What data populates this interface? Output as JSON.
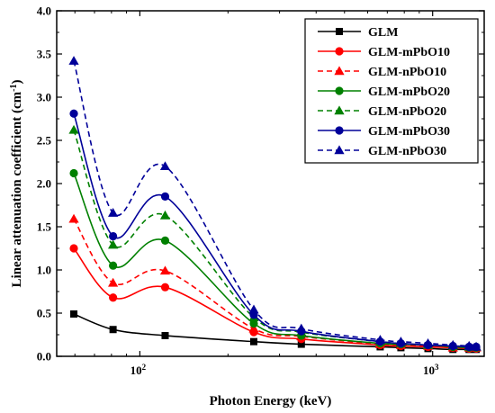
{
  "chart_data": {
    "type": "line",
    "xlabel": "Photon Energy (keV)",
    "ylabel": "Linear attenuation coefficient (cm",
    "ylabel_sup": "-1",
    "ylabel_close": ")",
    "xscale": "log",
    "xlim": [
      52,
      1500
    ],
    "ylim": [
      0,
      4.0
    ],
    "yticks": [
      {
        "value": 0.0,
        "label": "0.0"
      },
      {
        "value": 0.5,
        "label": "0.5"
      },
      {
        "value": 1.0,
        "label": "1.0"
      },
      {
        "value": 1.5,
        "label": "1.5"
      },
      {
        "value": 2.0,
        "label": "2.0"
      },
      {
        "value": 2.5,
        "label": "2.5"
      },
      {
        "value": 3.0,
        "label": "3.0"
      },
      {
        "value": 3.5,
        "label": "3.5"
      },
      {
        "value": 4.0,
        "label": "4.0"
      }
    ],
    "xticks": [
      {
        "value": 100,
        "base": "10",
        "exp": "2"
      },
      {
        "value": 1000,
        "base": "10",
        "exp": "3"
      }
    ],
    "x": [
      59.5,
      81,
      122,
      245,
      356,
      662,
      779,
      964,
      1173,
      1332,
      1408
    ],
    "legend_position": "top-right",
    "grid": false,
    "series": [
      {
        "name": "GLM",
        "color": "#000000",
        "dash": false,
        "marker": "square",
        "values": [
          0.49,
          0.31,
          0.24,
          0.17,
          0.14,
          0.11,
          0.1,
          0.09,
          0.08,
          0.08,
          0.08
        ]
      },
      {
        "name": "GLM-mPbO10",
        "color": "#ff0000",
        "dash": false,
        "marker": "circle",
        "values": [
          1.25,
          0.68,
          0.8,
          0.28,
          0.2,
          0.13,
          0.12,
          0.11,
          0.1,
          0.09,
          0.09
        ]
      },
      {
        "name": "GLM-nPbO10",
        "color": "#ff0000",
        "dash": true,
        "marker": "triangle",
        "values": [
          1.59,
          0.85,
          0.99,
          0.32,
          0.23,
          0.14,
          0.13,
          0.12,
          0.1,
          0.1,
          0.1
        ]
      },
      {
        "name": "GLM-mPbO20",
        "color": "#008000",
        "dash": false,
        "marker": "circle",
        "values": [
          2.12,
          1.05,
          1.34,
          0.38,
          0.24,
          0.15,
          0.14,
          0.13,
          0.11,
          0.1,
          0.1
        ]
      },
      {
        "name": "GLM-nPbO20",
        "color": "#008000",
        "dash": true,
        "marker": "triangle",
        "values": [
          2.62,
          1.29,
          1.63,
          0.45,
          0.28,
          0.17,
          0.15,
          0.13,
          0.12,
          0.11,
          0.11
        ]
      },
      {
        "name": "GLM-mPbO30",
        "color": "#000099",
        "dash": false,
        "marker": "circle",
        "values": [
          2.81,
          1.39,
          1.85,
          0.48,
          0.29,
          0.17,
          0.15,
          0.13,
          0.12,
          0.11,
          0.11
        ]
      },
      {
        "name": "GLM-nPbO30",
        "color": "#000099",
        "dash": true,
        "marker": "triangle",
        "values": [
          3.42,
          1.66,
          2.2,
          0.54,
          0.32,
          0.19,
          0.17,
          0.15,
          0.13,
          0.12,
          0.11
        ]
      }
    ]
  }
}
